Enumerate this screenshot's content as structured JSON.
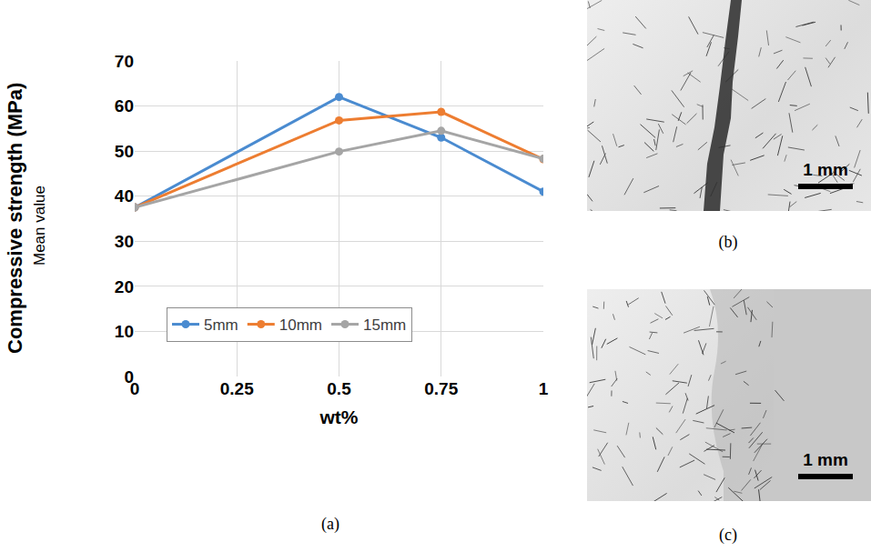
{
  "chart_data": {
    "type": "line",
    "x_label": "wt%",
    "y_label": "Compressive strength (MPa)",
    "annotations": [
      "Mean value"
    ],
    "x": [
      0,
      0.25,
      0.5,
      0.75,
      1
    ],
    "series": [
      {
        "name": "5mm",
        "color": "#4a8bd0",
        "marker": "circle",
        "values": [
          37.5,
          null,
          62,
          53,
          41
        ]
      },
      {
        "name": "10mm",
        "color": "#ed7d31",
        "marker": "circle",
        "values": [
          37.5,
          null,
          56.8,
          58.7,
          48.2
        ]
      },
      {
        "name": "15mm",
        "color": "#a5a5a5",
        "marker": "circle",
        "values": [
          37.5,
          null,
          49.9,
          54.5,
          48.3
        ]
      }
    ],
    "xlim": [
      0,
      1
    ],
    "xticks": [
      0,
      0.25,
      0.5,
      0.75,
      1
    ],
    "ylim": [
      0,
      70
    ],
    "yticks": [
      0,
      10,
      20,
      30,
      40,
      50,
      60,
      70
    ],
    "grid": true,
    "legend": "lower left"
  },
  "figure": {
    "panel_labels": [
      "(a)",
      "(b)",
      "(c)"
    ],
    "images": [
      {
        "panel": "(b)",
        "scale_bar": "1 mm"
      },
      {
        "panel": "(c)",
        "scale_bar": "1 mm"
      }
    ]
  }
}
